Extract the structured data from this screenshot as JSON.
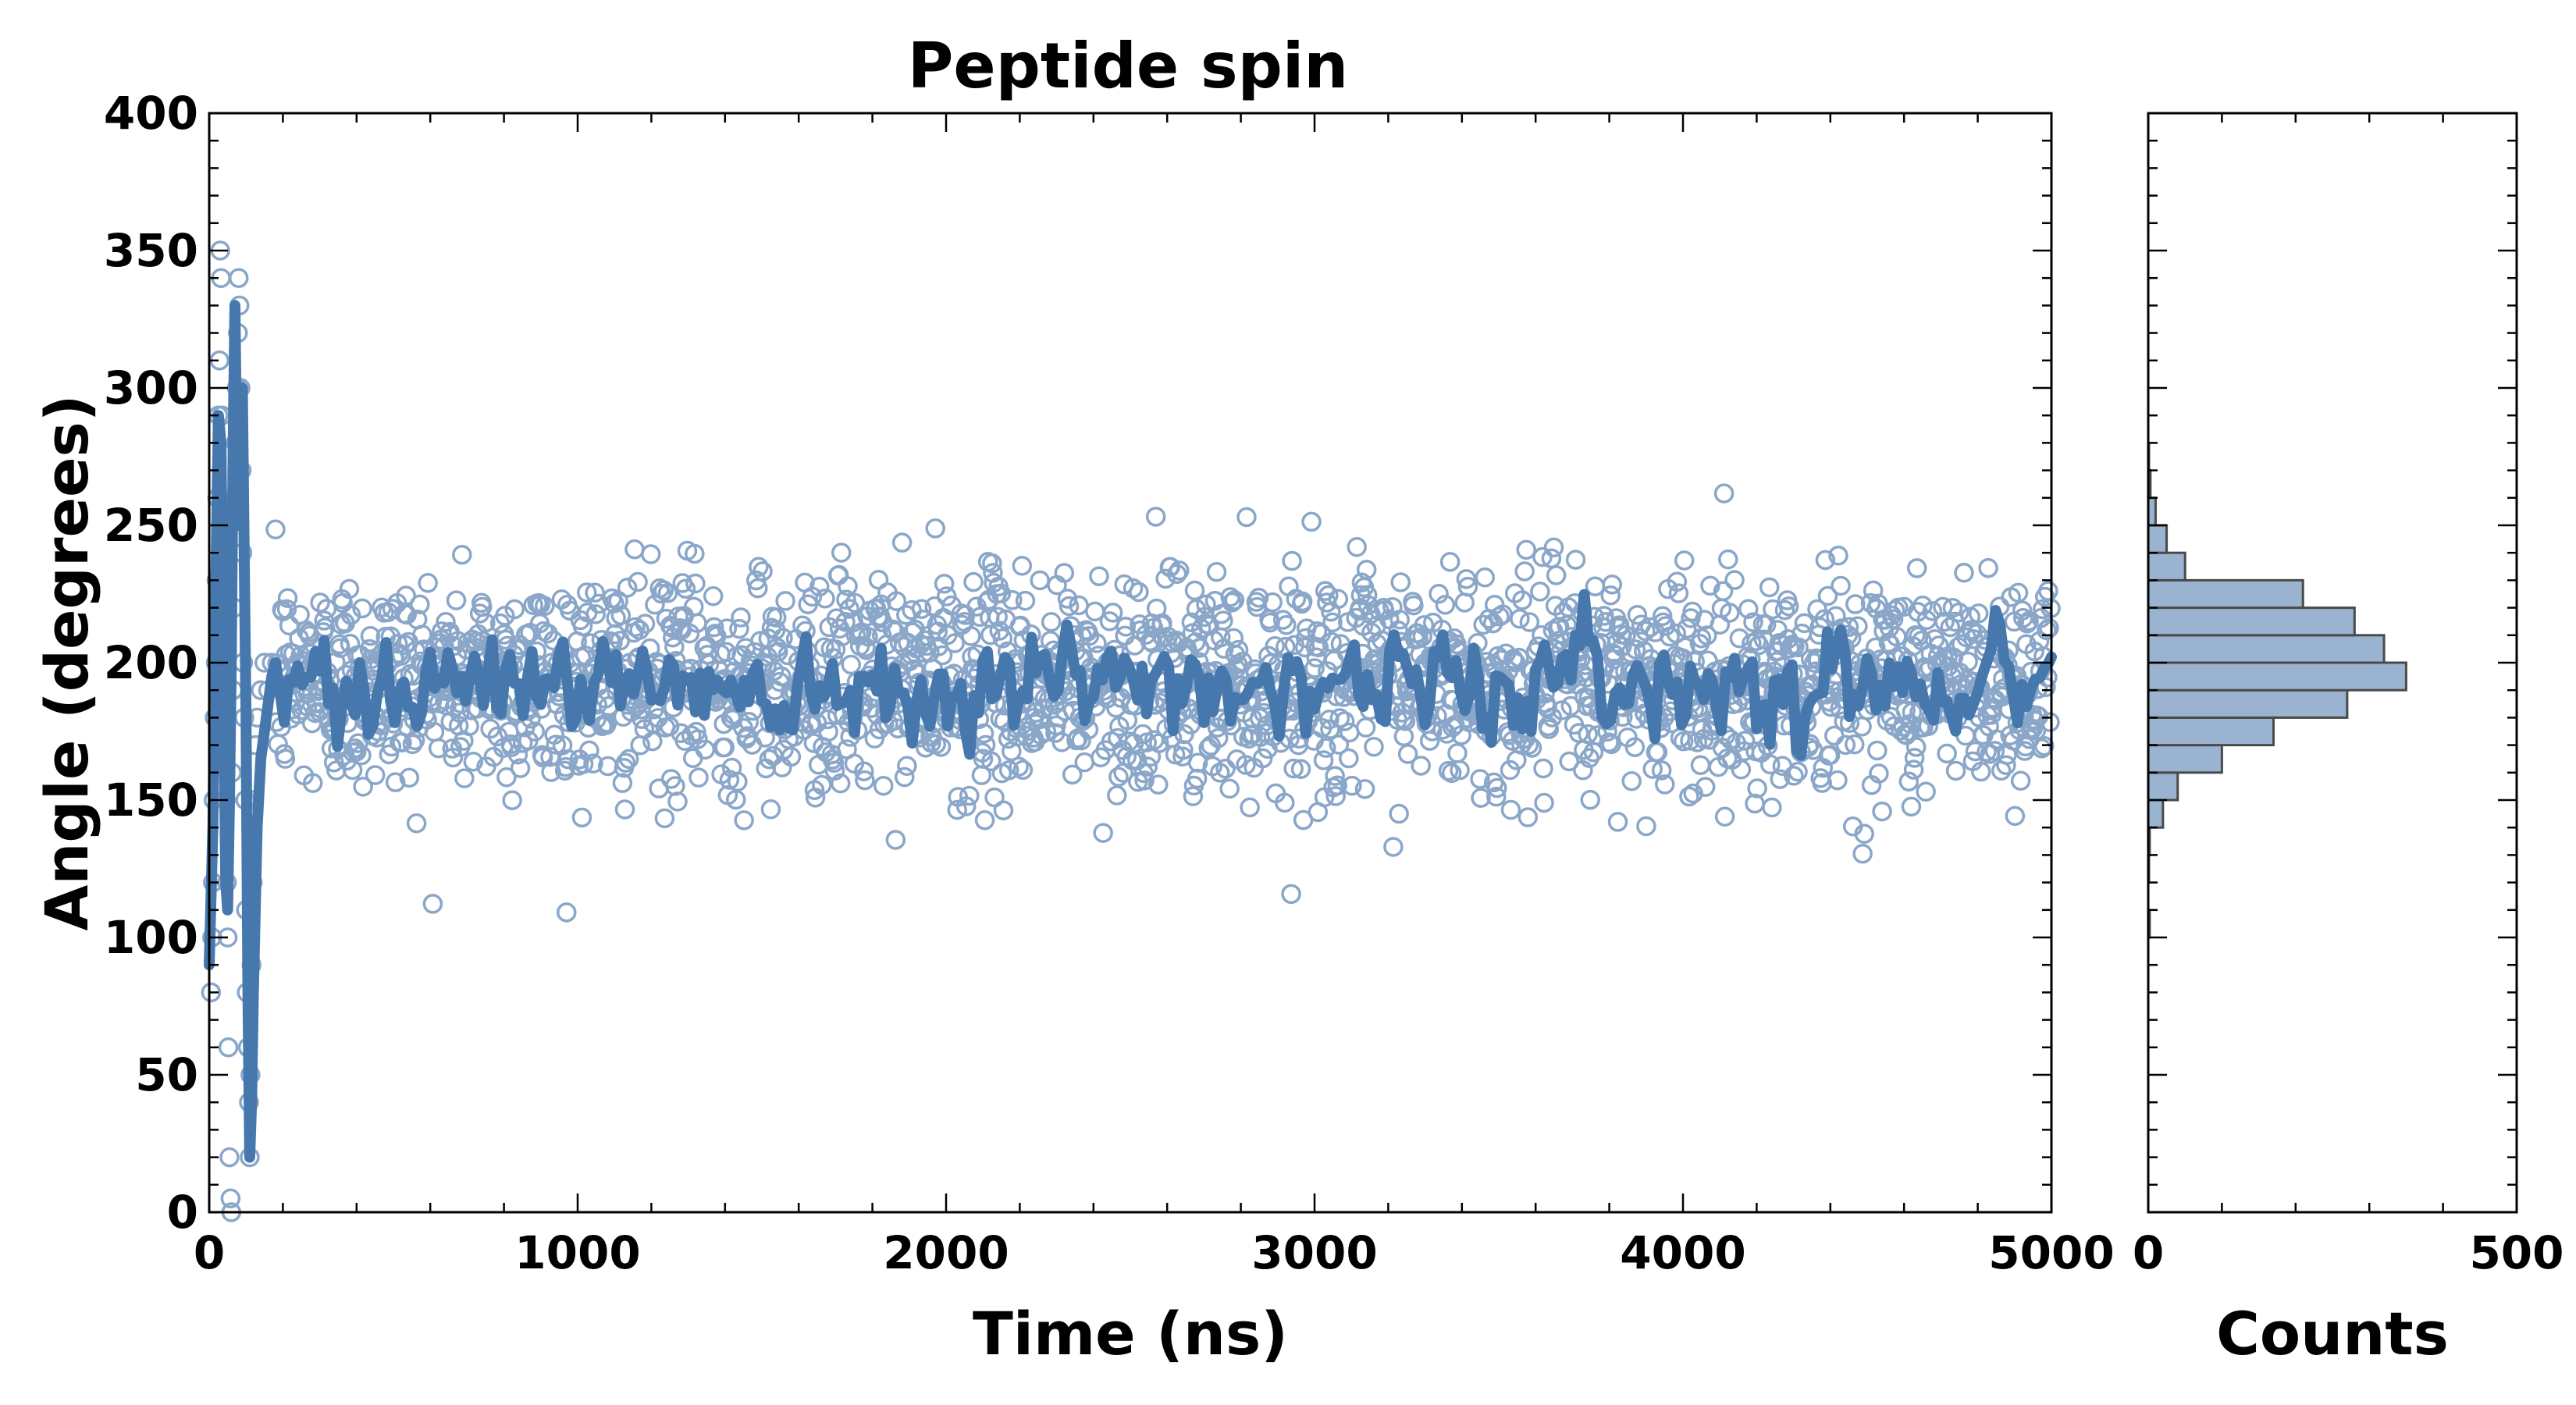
{
  "chart_data": [
    {
      "type": "scatter",
      "title": "Peptide spin",
      "xlabel": "Time (ns)",
      "ylabel": "Angle (degrees)",
      "xlim": [
        0,
        5000
      ],
      "ylim": [
        0,
        400
      ],
      "xticks": [
        0,
        1000,
        2000,
        3000,
        4000,
        5000
      ],
      "yticks": [
        0,
        50,
        100,
        150,
        200,
        250,
        300,
        350,
        400
      ],
      "grid": false,
      "colors": {
        "points": "#8aa6c8",
        "line": "#4678ad"
      },
      "series": [
        {
          "kind": "raw_points",
          "equilibrium_mean": 193,
          "equilibrium_spread": 20,
          "equilibrium_start": 180,
          "early_points": [
            [
              5,
              80
            ],
            [
              8,
              100
            ],
            [
              10,
              120
            ],
            [
              12,
              150
            ],
            [
              15,
              180
            ],
            [
              18,
              200
            ],
            [
              20,
              230
            ],
            [
              22,
              260
            ],
            [
              25,
              290
            ],
            [
              28,
              310
            ],
            [
              30,
              350
            ],
            [
              32,
              340
            ],
            [
              35,
              290
            ],
            [
              38,
              250
            ],
            [
              40,
              210
            ],
            [
              42,
              180
            ],
            [
              45,
              150
            ],
            [
              48,
              120
            ],
            [
              50,
              100
            ],
            [
              52,
              60
            ],
            [
              55,
              20
            ],
            [
              58,
              5
            ],
            [
              60,
              0
            ],
            [
              62,
              160
            ],
            [
              65,
              190
            ],
            [
              68,
              220
            ],
            [
              70,
              260
            ],
            [
              72,
              280
            ],
            [
              75,
              300
            ],
            [
              78,
              320
            ],
            [
              80,
              340
            ],
            [
              82,
              330
            ],
            [
              85,
              300
            ],
            [
              88,
              270
            ],
            [
              90,
              240
            ],
            [
              92,
              200
            ],
            [
              95,
              180
            ],
            [
              98,
              150
            ],
            [
              100,
              110
            ],
            [
              102,
              80
            ],
            [
              105,
              60
            ],
            [
              108,
              40
            ],
            [
              110,
              20
            ],
            [
              112,
              50
            ],
            [
              115,
              90
            ],
            [
              118,
              120
            ],
            [
              120,
              150
            ],
            [
              125,
              170
            ],
            [
              130,
              180
            ],
            [
              140,
              190
            ],
            [
              150,
              200
            ],
            [
              160,
              190
            ],
            [
              170,
              200
            ]
          ]
        },
        {
          "kind": "running_average",
          "early_points": [
            [
              0,
              90
            ],
            [
              10,
              140
            ],
            [
              18,
              230
            ],
            [
              25,
              290
            ],
            [
              32,
              280
            ],
            [
              40,
              180
            ],
            [
              45,
              120
            ],
            [
              50,
              110
            ],
            [
              55,
              150
            ],
            [
              60,
              200
            ],
            [
              65,
              280
            ],
            [
              70,
              330
            ],
            [
              75,
              270
            ],
            [
              80,
              250
            ],
            [
              85,
              290
            ],
            [
              90,
              300
            ],
            [
              95,
              240
            ],
            [
              100,
              180
            ],
            [
              105,
              80
            ],
            [
              110,
              20
            ],
            [
              115,
              40
            ],
            [
              120,
              80
            ],
            [
              125,
              110
            ],
            [
              130,
              140
            ],
            [
              140,
              165
            ],
            [
              150,
              175
            ],
            [
              160,
              185
            ],
            [
              170,
              195
            ],
            [
              180,
              200
            ]
          ],
          "equilibrium_mean": 193,
          "equilibrium_spread": 10
        }
      ]
    },
    {
      "type": "bar",
      "orientation": "horizontal",
      "xlabel": "Counts",
      "xlim": [
        0,
        500
      ],
      "xticks": [
        0,
        500
      ],
      "ylim": [
        0,
        400
      ],
      "bin_width": 10,
      "colors": {
        "fill": "#9ab3d0",
        "edge": "#4a4a4a"
      },
      "bins": [
        {
          "y0": 0,
          "count": 0
        },
        {
          "y0": 10,
          "count": 0
        },
        {
          "y0": 20,
          "count": 0
        },
        {
          "y0": 30,
          "count": 0
        },
        {
          "y0": 40,
          "count": 0
        },
        {
          "y0": 50,
          "count": 0
        },
        {
          "y0": 60,
          "count": 0
        },
        {
          "y0": 70,
          "count": 0
        },
        {
          "y0": 80,
          "count": 0
        },
        {
          "y0": 90,
          "count": 0
        },
        {
          "y0": 100,
          "count": 2
        },
        {
          "y0": 110,
          "count": 0
        },
        {
          "y0": 120,
          "count": 1
        },
        {
          "y0": 130,
          "count": 2
        },
        {
          "y0": 140,
          "count": 20
        },
        {
          "y0": 150,
          "count": 40
        },
        {
          "y0": 160,
          "count": 100
        },
        {
          "y0": 170,
          "count": 170
        },
        {
          "y0": 180,
          "count": 270
        },
        {
          "y0": 190,
          "count": 350
        },
        {
          "y0": 200,
          "count": 320
        },
        {
          "y0": 210,
          "count": 280
        },
        {
          "y0": 220,
          "count": 210
        },
        {
          "y0": 230,
          "count": 50
        },
        {
          "y0": 240,
          "count": 25
        },
        {
          "y0": 250,
          "count": 10
        },
        {
          "y0": 260,
          "count": 3
        },
        {
          "y0": 270,
          "count": 1
        },
        {
          "y0": 280,
          "count": 0
        },
        {
          "y0": 290,
          "count": 0
        },
        {
          "y0": 300,
          "count": 0
        },
        {
          "y0": 310,
          "count": 0
        },
        {
          "y0": 320,
          "count": 0
        },
        {
          "y0": 330,
          "count": 0
        },
        {
          "y0": 340,
          "count": 0
        },
        {
          "y0": 350,
          "count": 0
        },
        {
          "y0": 360,
          "count": 0
        },
        {
          "y0": 370,
          "count": 0
        },
        {
          "y0": 380,
          "count": 0
        },
        {
          "y0": 390,
          "count": 0
        }
      ]
    }
  ]
}
